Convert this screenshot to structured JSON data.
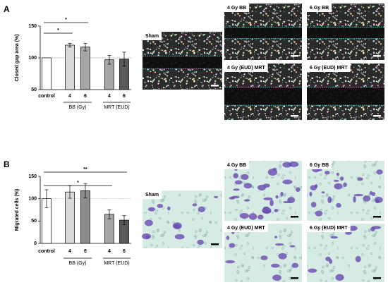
{
  "chart_data": [
    {
      "type": "bar",
      "ylabel": "Closed gap area (%)",
      "categories": [
        "control",
        "4",
        "6",
        "4",
        "6"
      ],
      "values": [
        100,
        120,
        117,
        97,
        98
      ],
      "errors": [
        null,
        3,
        6,
        7,
        11
      ],
      "colors": [
        "#ffffff",
        "#d9d9d9",
        "#a6a6a6",
        "#a6a6a6",
        "#595959"
      ],
      "ylim": [
        50,
        150
      ],
      "yticks": [
        50,
        100,
        150
      ],
      "reference_line": 100,
      "groups": [
        "BB (Gy)",
        "MRT (EUD)"
      ],
      "significance": [
        "*",
        "*"
      ]
    },
    {
      "type": "bar",
      "ylabel": "Migrated cells (%)",
      "categories": [
        "control",
        "4",
        "6",
        "4",
        "6"
      ],
      "values": [
        100,
        115,
        118,
        65,
        52
      ],
      "errors": [
        20,
        14,
        16,
        10,
        10
      ],
      "colors": [
        "#ffffff",
        "#d9d9d9",
        "#8c8c8c",
        "#a6a6a6",
        "#595959"
      ],
      "ylim": [
        0,
        150
      ],
      "yticks": [
        0,
        50,
        100,
        150
      ],
      "reference_line": 100,
      "groups": [
        "BB (Gy)",
        "MRT (EUD)"
      ],
      "significance": [
        "**",
        "*"
      ]
    }
  ],
  "panels": [
    {
      "label": "A",
      "image_labels": [
        "Sham",
        "4 Gy BB",
        "6 Gy BB",
        "4 Gy (EUD) MRT",
        "6 Gy (EUD) MRT"
      ]
    },
    {
      "label": "B",
      "image_labels": [
        "Sham",
        "4 Gy BB",
        "6 Gy BB",
        "4 Gy (EUD) MRT",
        "6 Gy (EUD) MRT"
      ]
    }
  ]
}
